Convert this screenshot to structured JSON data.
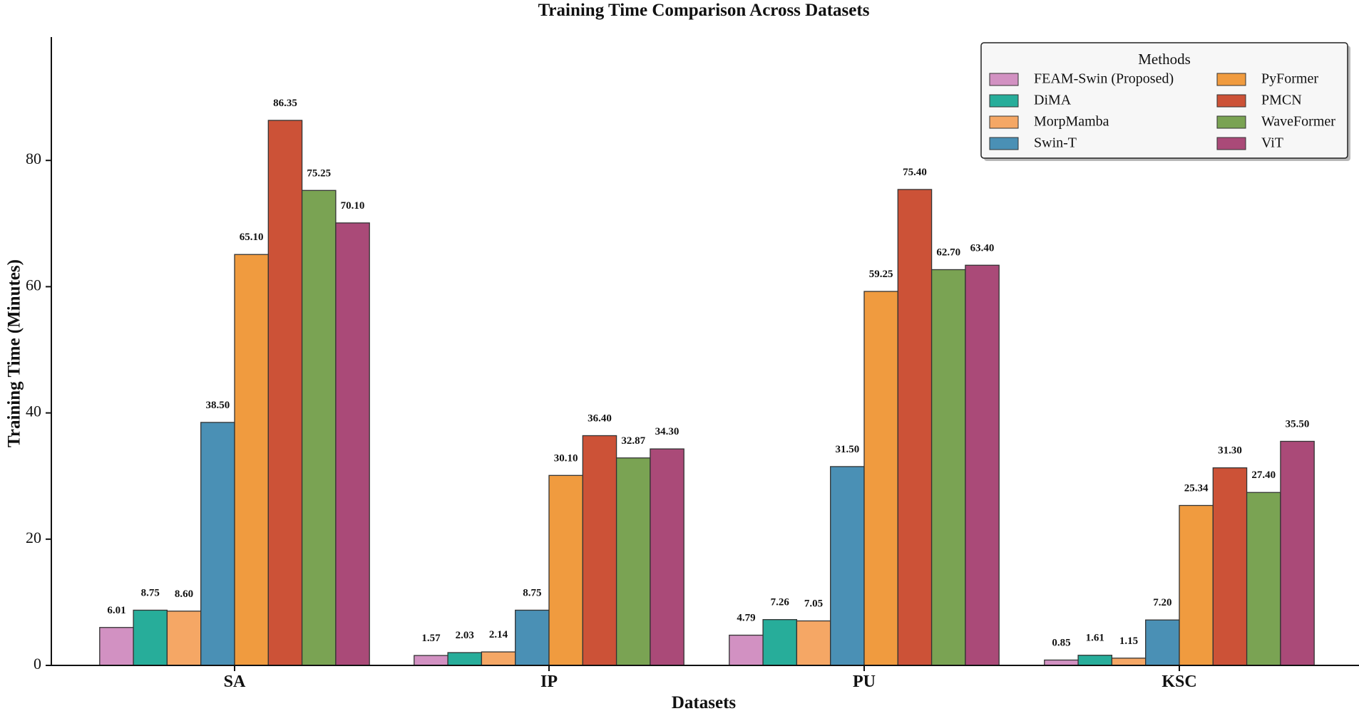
{
  "chart_data": {
    "type": "bar",
    "title": "Training Time Comparison Across Datasets",
    "xlabel": "Datasets",
    "ylabel": "Training Time (Minutes)",
    "ylim": [
      0,
      100
    ],
    "yticks": [
      0,
      20,
      40,
      60,
      80
    ],
    "grid": false,
    "legend_title": "Methods",
    "legend_placement": "top-right",
    "categories": [
      "SA",
      "IP",
      "PU",
      "KSC"
    ],
    "series": [
      {
        "name": "FEAM-Swin (Proposed)",
        "color": "#d291c2",
        "values": [
          6.01,
          1.57,
          4.79,
          0.85
        ],
        "labels": [
          "6.01",
          "1.57",
          "4.79",
          "0.85"
        ]
      },
      {
        "name": "DiMA",
        "color": "#27ad9a",
        "values": [
          8.75,
          2.03,
          7.26,
          1.61
        ],
        "labels": [
          "8.75",
          "2.03",
          "7.26",
          "1.61"
        ]
      },
      {
        "name": "MorpMamba",
        "color": "#f5a765",
        "values": [
          8.6,
          2.14,
          7.05,
          1.15
        ],
        "labels": [
          "8.60",
          "2.14",
          "7.05",
          "1.15"
        ]
      },
      {
        "name": "Swin-T",
        "color": "#4a90b5",
        "values": [
          38.5,
          8.75,
          31.5,
          7.2
        ],
        "labels": [
          "38.50",
          "8.75",
          "31.50",
          "7.20"
        ]
      },
      {
        "name": "PyFormer",
        "color": "#f09b3f",
        "values": [
          65.1,
          30.1,
          59.25,
          25.34
        ],
        "labels": [
          "65.10",
          "30.10",
          "59.25",
          "25.34"
        ]
      },
      {
        "name": "PMCN",
        "color": "#cc5237",
        "values": [
          86.35,
          36.4,
          75.4,
          31.3
        ],
        "labels": [
          "86.35",
          "36.40",
          "75.40",
          "31.30"
        ]
      },
      {
        "name": "WaveFormer",
        "color": "#7aa353",
        "values": [
          75.25,
          32.87,
          62.7,
          27.4
        ],
        "labels": [
          "75.25",
          "32.87",
          "62.70",
          "27.40"
        ]
      },
      {
        "name": "ViT",
        "color": "#aa4a78",
        "values": [
          70.1,
          34.3,
          63.4,
          35.5
        ],
        "labels": [
          "70.10",
          "34.30",
          "63.40",
          "35.50"
        ]
      }
    ]
  }
}
